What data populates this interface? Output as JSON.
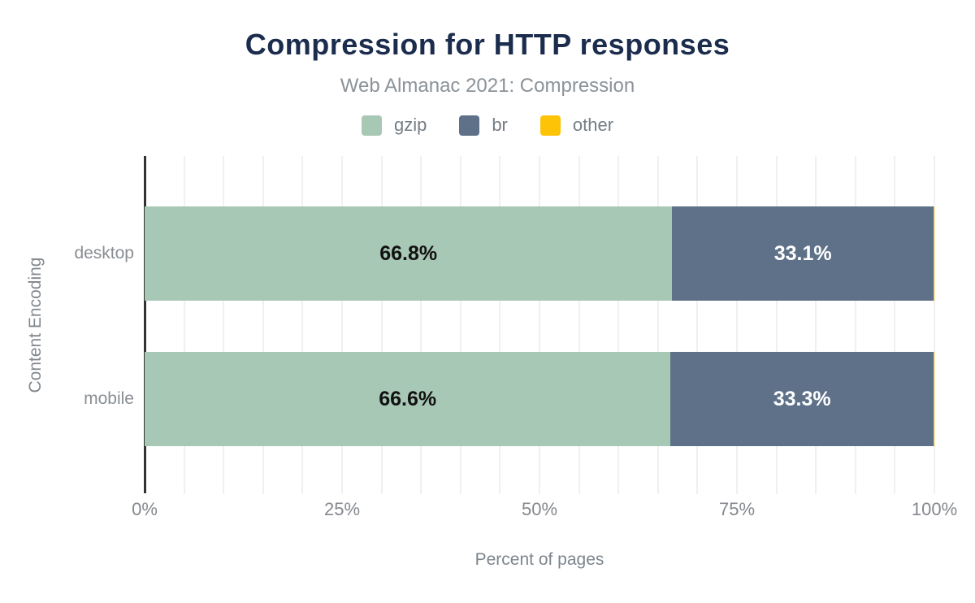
{
  "header": {
    "title": "Compression for HTTP responses",
    "subtitle": "Web Almanac 2021: Compression"
  },
  "legend": [
    {
      "label": "gzip",
      "color": "#a8c8b6"
    },
    {
      "label": "br",
      "color": "#5e7189"
    },
    {
      "label": "other",
      "color": "#fdc306"
    }
  ],
  "colors": {
    "title": "#1b2c4d",
    "subtitle_text": "#8b9299",
    "axis_text": "#84888e",
    "gridline": "#f0f0f0",
    "axis_line": "#333333",
    "background": "#ffffff"
  },
  "chart_data": {
    "type": "bar",
    "orientation": "horizontal",
    "stacked": true,
    "title": "Compression for HTTP responses",
    "subtitle": "Web Almanac 2021: Compression",
    "categories": [
      "desktop",
      "mobile"
    ],
    "series": [
      {
        "name": "gzip",
        "color": "#a8c8b6",
        "values": [
          66.8,
          66.6
        ],
        "labels": [
          "66.8%",
          "66.6%"
        ],
        "label_color": "#111111"
      },
      {
        "name": "br",
        "color": "#5e7189",
        "values": [
          33.1,
          33.3
        ],
        "labels": [
          "33.1%",
          "33.3%"
        ],
        "label_color": "#ffffff"
      },
      {
        "name": "other",
        "color": "#fdc306",
        "values": [
          0.1,
          0.1
        ],
        "labels": [
          "",
          ""
        ],
        "label_color": "#111111"
      }
    ],
    "xlabel": "Percent of pages",
    "ylabel": "Content Encoding",
    "xlim": [
      0,
      100
    ],
    "x_ticks": [
      "0%",
      "25%",
      "50%",
      "75%",
      "100%"
    ],
    "x_tick_values": [
      0,
      25,
      50,
      75,
      100
    ],
    "minor_grid_step_pct": 5,
    "grid": "vertical",
    "legend_position": "top"
  }
}
